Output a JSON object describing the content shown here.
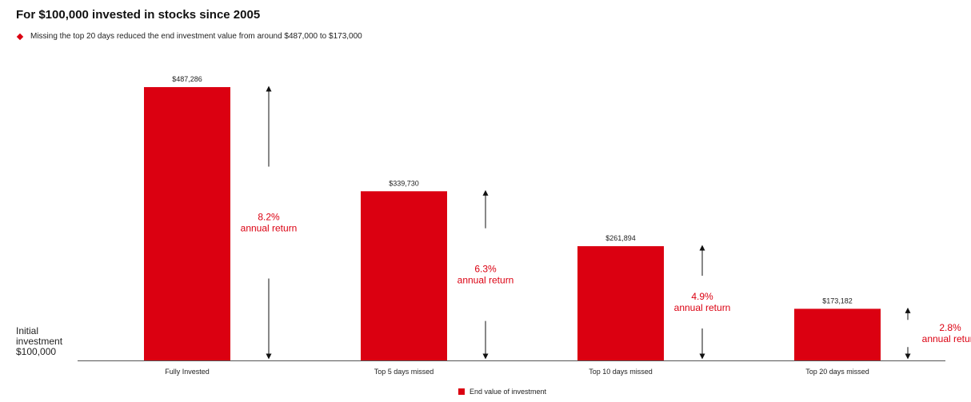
{
  "header": {
    "title": "For $100,000 invested in stocks since 2005",
    "bullet": "Missing the top 20 days reduced the end investment value from around $487,000 to $173,000"
  },
  "baseline_label": [
    "Initial",
    "investment",
    "$100,000"
  ],
  "legend": {
    "label": "End value of investment",
    "color": "#db0011"
  },
  "chart_data": {
    "type": "bar",
    "title": "For $100,000 invested in stocks since 2005",
    "categories": [
      "Fully Invested",
      "Top 5 days missed",
      "Top 10 days missed",
      "Top 20 days missed"
    ],
    "series": [
      {
        "name": "End value of investment",
        "values": [
          487286,
          339730,
          261894,
          173182
        ]
      }
    ],
    "value_labels": [
      "$487,286",
      "$339,730",
      "$261,894",
      "$173,182"
    ],
    "annotations": [
      {
        "pct": "8.2%",
        "text": "annual return"
      },
      {
        "pct": "6.3%",
        "text": "annual return"
      },
      {
        "pct": "4.9%",
        "text": "annual return"
      },
      {
        "pct": "2.8%",
        "text": "annual return"
      }
    ],
    "baseline": 100000,
    "ylim": [
      100000,
      487286
    ],
    "bar_color": "#db0011",
    "annotation_color": "#db0011",
    "grid": false,
    "legend_position": "bottom-center"
  }
}
